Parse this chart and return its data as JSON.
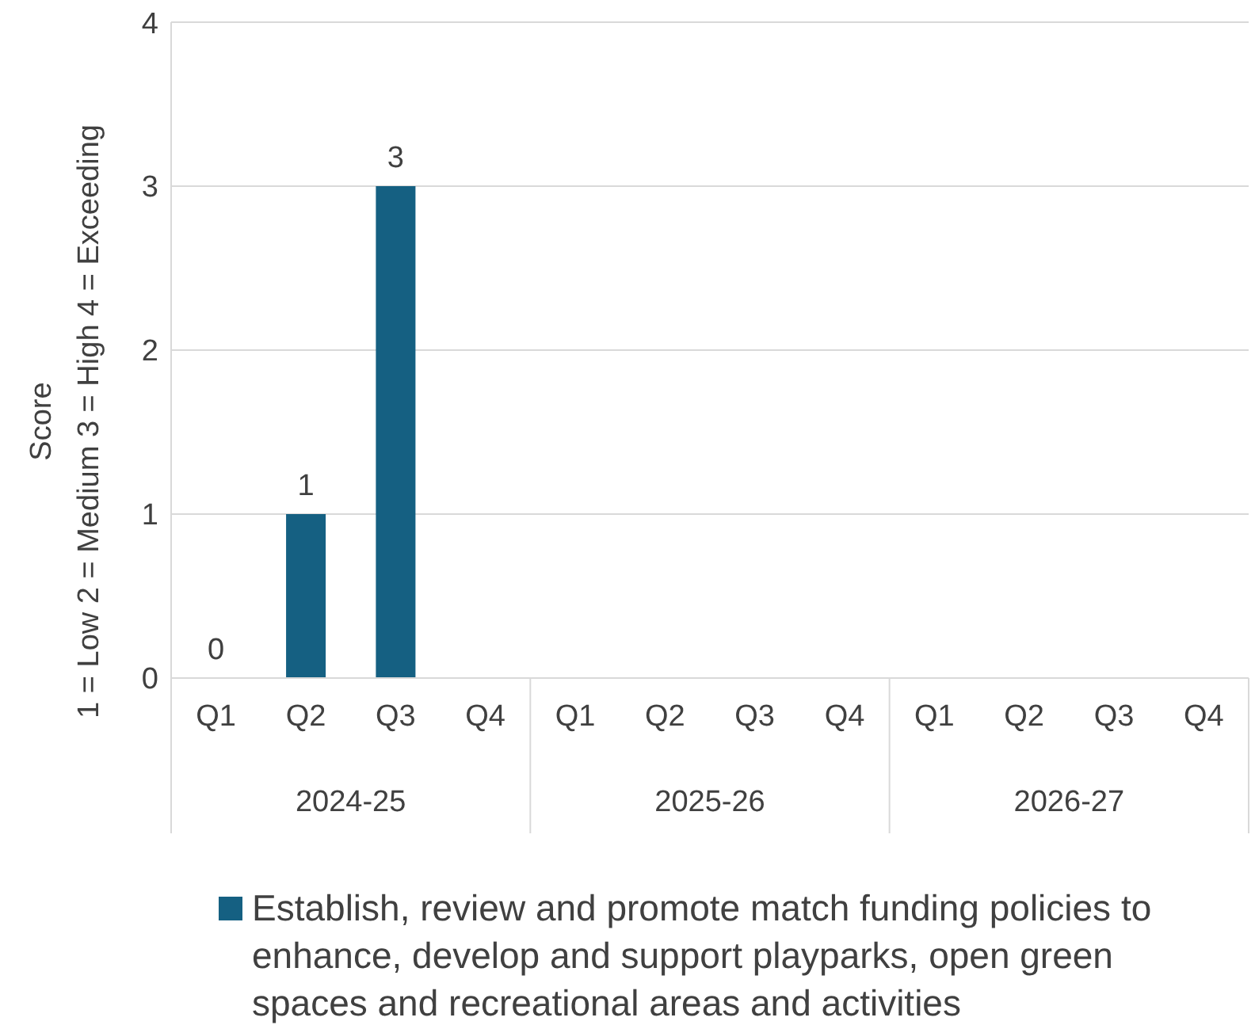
{
  "chart_data": {
    "type": "bar",
    "ylabel": "Score\n1 = Low  2 = Medium  3 = High  4 = Exceeding",
    "categories": [
      "Q1",
      "Q2",
      "Q3",
      "Q4",
      "Q1",
      "Q2",
      "Q3",
      "Q4",
      "Q1",
      "Q2",
      "Q3",
      "Q4"
    ],
    "annotations": [
      "2024-25",
      "2025-26",
      "2026-27"
    ],
    "series": [
      {
        "name": "Establish, review and promote match funding policies to enhance, develop and support playparks, open green spaces and recreational areas and activities",
        "color": "#156082",
        "values": [
          0,
          1,
          3,
          null,
          null,
          null,
          null,
          null,
          null,
          null,
          null,
          null
        ]
      }
    ],
    "ylim": [
      0,
      4
    ],
    "yticks": [
      0,
      1,
      2,
      3,
      4
    ],
    "grid": "y",
    "data_labels": true,
    "legend": "bottom"
  }
}
